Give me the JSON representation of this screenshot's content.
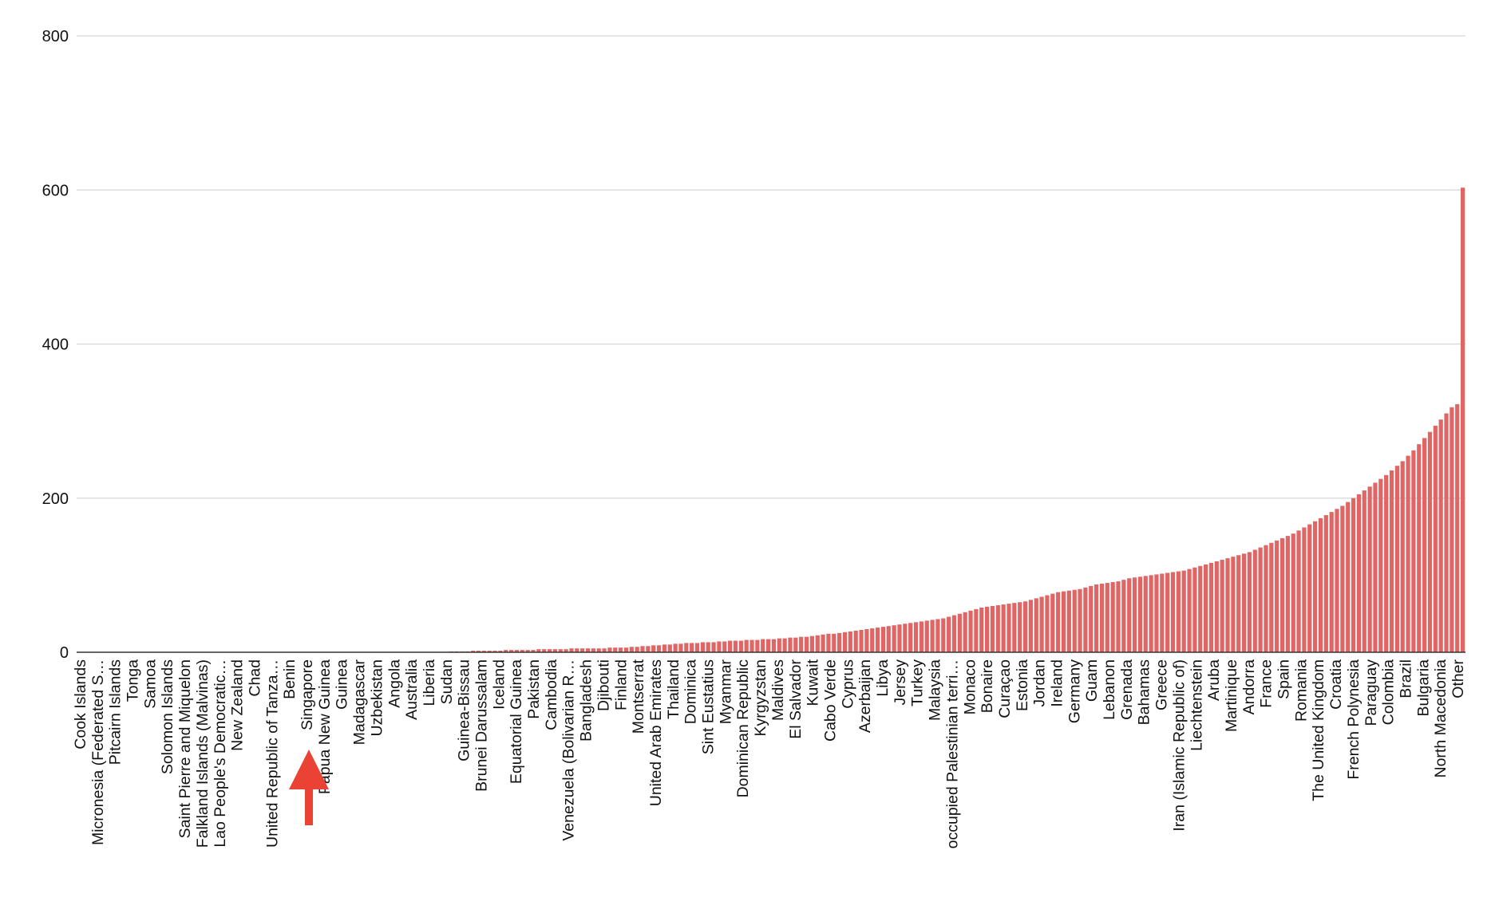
{
  "chart_data": {
    "type": "bar",
    "title": "",
    "xlabel": "",
    "ylabel": "",
    "ylim": [
      0,
      800
    ],
    "yticks": [
      0,
      200,
      400,
      600,
      800
    ],
    "grid": true,
    "legend": "none",
    "bar_color": "#e06666",
    "arrow_color": "#ea4335",
    "highlighted_category": "Singapore",
    "bar_count": 243,
    "labeled_categories": [
      "Cook Islands",
      "Micronesia (Federated S…",
      "Pitcairn Islands",
      "Tonga",
      "Samoa",
      "Solomon Islands",
      "Saint Pierre and Miquelon",
      "Falkland Islands (Malvinas)",
      "Lao People's Democratic…",
      "New Zealand",
      "Chad",
      "United Republic of Tanza…",
      "Benin",
      "Singapore",
      "Papua New Guinea",
      "Guinea",
      "Madagascar",
      "Uzbekistan",
      "Angola",
      "Australia",
      "Liberia",
      "Sudan",
      "Guinea-Bissau",
      "Brunei Darussalam",
      "Iceland",
      "Equatorial Guinea",
      "Pakistan",
      "Cambodia",
      "Venezuela (Bolivarian R…",
      "Bangladesh",
      "Djibouti",
      "Finland",
      "Montserrat",
      "United Arab Emirates",
      "Thailand",
      "Dominica",
      "Sint Eustatius",
      "Myanmar",
      "Dominican Republic",
      "Kyrgyzstan",
      "Maldives",
      "El Salvador",
      "Kuwait",
      "Cabo Verde",
      "Cyprus",
      "Azerbaijan",
      "Libya",
      "Jersey",
      "Turkey",
      "Malaysia",
      "occupied Palestinian terri…",
      "Monaco",
      "Bonaire",
      "Curaçao",
      "Estonia",
      "Jordan",
      "Ireland",
      "Germany",
      "Guam",
      "Lebanon",
      "Grenada",
      "Bahamas",
      "Greece",
      "Iran (Islamic Republic of)",
      "Liechtenstein",
      "Aruba",
      "Martinique",
      "Andorra",
      "France",
      "Spain",
      "Romania",
      "The United Kingdom",
      "Croatia",
      "French Polynesia",
      "Paraguay",
      "Colombia",
      "Brazil",
      "Bulgaria",
      "North Macedonia",
      "Other"
    ],
    "values": [
      0,
      0,
      0,
      0,
      0,
      0,
      0,
      0,
      0,
      0,
      0,
      0,
      0,
      0,
      0,
      0,
      0,
      0,
      0,
      0,
      0,
      0,
      0,
      0,
      0,
      0,
      0,
      0,
      0,
      0,
      0,
      0,
      0,
      0,
      0,
      0,
      0,
      0,
      0,
      0,
      0,
      0,
      0,
      0,
      0,
      0,
      0,
      0,
      0,
      0,
      0,
      0,
      0,
      0,
      0,
      0,
      0,
      0,
      0,
      0,
      0,
      0,
      0,
      0,
      0,
      0,
      0,
      0,
      1,
      1,
      1,
      1,
      2,
      2,
      2,
      2,
      2,
      2,
      3,
      3,
      3,
      3,
      3,
      3,
      4,
      4,
      4,
      4,
      4,
      4,
      5,
      5,
      5,
      5,
      5,
      5,
      5,
      6,
      6,
      6,
      6,
      7,
      7,
      8,
      8,
      9,
      9,
      10,
      10,
      11,
      11,
      12,
      12,
      12,
      13,
      13,
      13,
      14,
      14,
      15,
      15,
      15,
      16,
      16,
      16,
      17,
      17,
      17,
      18,
      18,
      19,
      19,
      20,
      20,
      21,
      22,
      23,
      24,
      24,
      25,
      26,
      27,
      28,
      29,
      30,
      31,
      32,
      33,
      34,
      35,
      36,
      37,
      38,
      39,
      40,
      41,
      42,
      43,
      44,
      46,
      48,
      50,
      52,
      54,
      56,
      58,
      59,
      60,
      61,
      62,
      63,
      64,
      65,
      66,
      68,
      70,
      72,
      74,
      76,
      78,
      79,
      80,
      81,
      82,
      84,
      86,
      88,
      89,
      90,
      91,
      92,
      94,
      96,
      97,
      98,
      99,
      100,
      101,
      102,
      103,
      104,
      105,
      106,
      108,
      110,
      112,
      114,
      116,
      118,
      120,
      122,
      124,
      126,
      128,
      130,
      133,
      136,
      139,
      142,
      145,
      148,
      151,
      154,
      158,
      162,
      166,
      170,
      174,
      178,
      182,
      186,
      190,
      195,
      200,
      205,
      210,
      215,
      220,
      225,
      230,
      236,
      242,
      248,
      255,
      262,
      270,
      278,
      286,
      294,
      302,
      310,
      318,
      322,
      603
    ]
  }
}
